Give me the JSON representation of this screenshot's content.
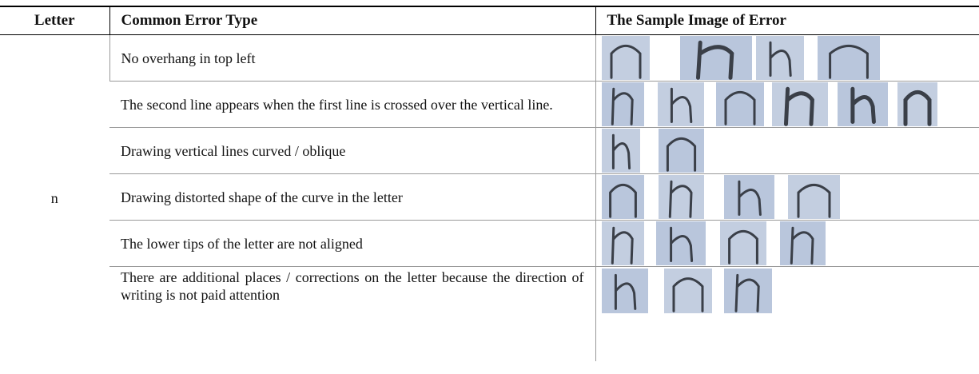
{
  "table": {
    "header": [
      "Letter",
      "Common Error Type",
      "The Sample Image of Error"
    ],
    "letter": "n",
    "rows": [
      "No overhang in top left",
      "The second line appears when the first line is crossed over the vertical line.",
      "Drawing vertical lines curved / oblique",
      "Drawing distorted shape of the curve in the letter",
      "The lower tips of the letter are not aligned",
      "There are additional places / corrections on the letter because the direction of writing is not paid attention"
    ]
  }
}
